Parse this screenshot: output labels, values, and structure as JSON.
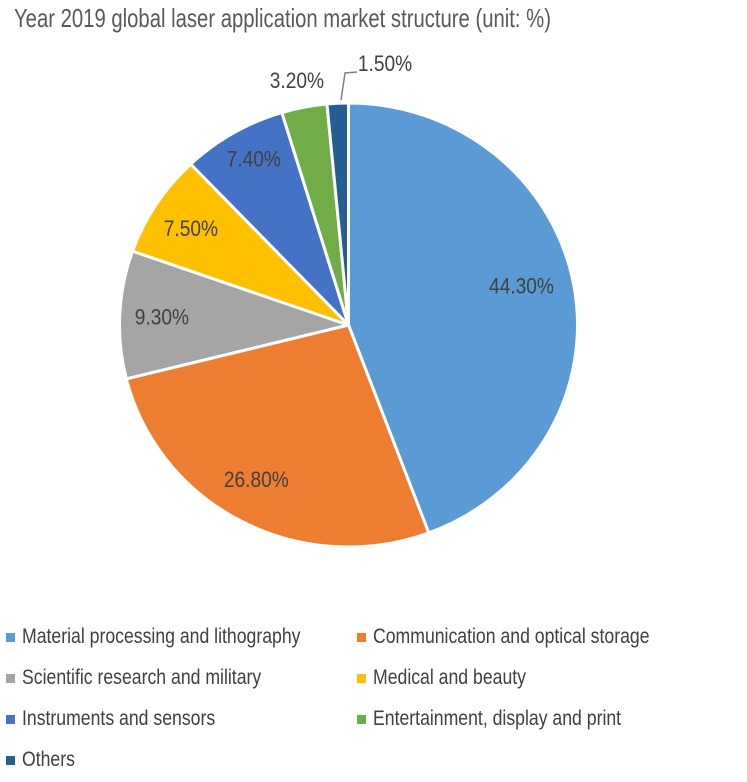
{
  "chart_data": {
    "type": "pie",
    "title": "Year 2019 global laser application market structure (unit: %)",
    "unit": "%",
    "direction": "clockwise",
    "start_angle_deg": 0,
    "legend_position": "bottom",
    "background_color": "#FFFFFF",
    "title_color": "#595959",
    "data_label_color": "#404040",
    "legend_text_color": "#404040",
    "slice_border_color": "#FFFFFF",
    "leader_line_color": "#808080",
    "slices": [
      {
        "label": "Material processing and lithography",
        "value": 44.3,
        "display": "44.30%",
        "color": "#5B9BD5"
      },
      {
        "label": "Communication and optical storage",
        "value": 26.8,
        "display": "26.80%",
        "color": "#ED7D31"
      },
      {
        "label": "Scientific research and military",
        "value": 9.3,
        "display": "9.30%",
        "color": "#A5A5A5"
      },
      {
        "label": "Medical and beauty",
        "value": 7.5,
        "display": "7.50%",
        "color": "#FFC000"
      },
      {
        "label": "Instruments and sensors",
        "value": 7.4,
        "display": "7.40%",
        "color": "#4472C4"
      },
      {
        "label": "Entertainment, display and print",
        "value": 3.2,
        "display": "3.20%",
        "color": "#70AD47"
      },
      {
        "label": "Others",
        "value": 1.5,
        "display": "1.50%",
        "color": "#255E91"
      }
    ]
  }
}
